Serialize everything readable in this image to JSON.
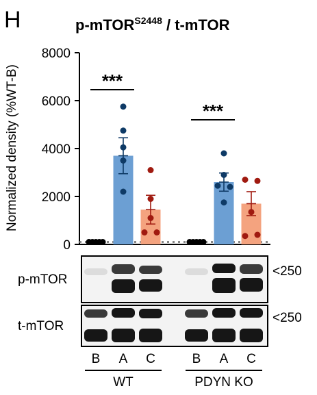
{
  "panel_letter": "H",
  "chart_data": {
    "type": "bar",
    "title": "p-mTOR",
    "title_superscript": "S2448",
    "title_suffix": " / t-mTOR",
    "ylabel": "Normalized density (%WT-B)",
    "ylim": [
      0,
      8000
    ],
    "yticks": [
      "0",
      "2000",
      "4000",
      "6000",
      "8000"
    ],
    "baseline_value": 100,
    "categories": [
      "B",
      "A",
      "C",
      "B",
      "A",
      "C"
    ],
    "groups": [
      {
        "label": "WT",
        "categories": [
          "B",
          "A",
          "C"
        ]
      },
      {
        "label": "PDYN KO",
        "categories": [
          "B",
          "A",
          "C"
        ]
      }
    ],
    "bars": [
      {
        "value": 100,
        "err": 0,
        "color": "#000000",
        "points": [
          100,
          100,
          100,
          100,
          100
        ]
      },
      {
        "value": 3700,
        "err": 750,
        "color": "#6c9fd3",
        "point_color": "#0e3a66",
        "points": [
          5750,
          4750,
          4050,
          3500,
          2200
        ]
      },
      {
        "value": 1450,
        "err": 600,
        "color": "#f4a37f",
        "point_color": "#a01a10",
        "points": [
          3100,
          1900,
          1100,
          500,
          500
        ]
      },
      {
        "value": 100,
        "err": 0,
        "color": "#000000",
        "points": [
          100,
          100,
          100,
          100,
          100
        ]
      },
      {
        "value": 2600,
        "err": 380,
        "color": "#6c9fd3",
        "point_color": "#0e3a66",
        "points": [
          3800,
          2900,
          2450,
          2400,
          1750
        ]
      },
      {
        "value": 1700,
        "err": 500,
        "color": "#f4a37f",
        "point_color": "#a01a10",
        "points": [
          2700,
          2650,
          1350,
          400,
          350
        ]
      }
    ],
    "significance": [
      {
        "text": "***",
        "from_bar": 0,
        "to_bar": 1
      },
      {
        "text": "***",
        "from_bar": 3,
        "to_bar": 4
      }
    ]
  },
  "blots": [
    {
      "label": "p-mTOR",
      "mw": "<250"
    },
    {
      "label": "t-mTOR",
      "mw": "<250"
    }
  ]
}
